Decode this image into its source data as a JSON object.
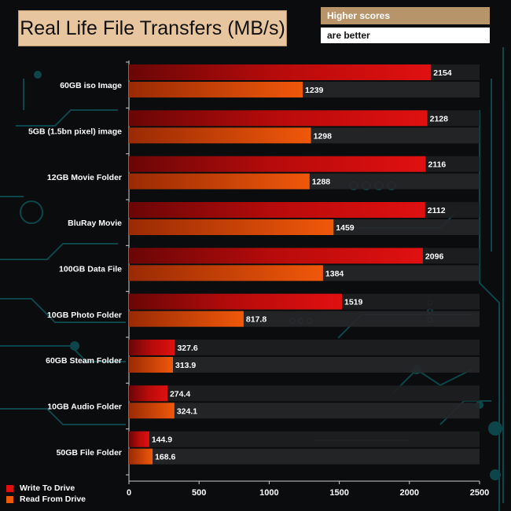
{
  "chart_data": {
    "type": "bar",
    "orientation": "horizontal",
    "title": "Real Life File Transfers (MB/s)",
    "notes": [
      "Higher scores",
      "are better"
    ],
    "categories": [
      "60GB iso Image",
      "5GB (1.5bn pixel) image",
      "12GB Movie Folder",
      "BluRay Movie",
      "100GB Data File",
      "10GB Photo Folder",
      "60GB Steam Folder",
      "10GB Audio Folder",
      "50GB File Folder"
    ],
    "series": [
      {
        "name": "Write To  Drive",
        "values": [
          2154,
          2128,
          2116,
          2112,
          2096,
          1519,
          327.6,
          274.4,
          144.9
        ],
        "labels": [
          "2154",
          "2128",
          "2116",
          "2112",
          "2096",
          "1519",
          "327.6",
          "274.4",
          "144.9"
        ],
        "color": "#e01010"
      },
      {
        "name": "Read From  Drive",
        "values": [
          1239,
          1298,
          1288,
          1459,
          1384,
          817.8,
          313.9,
          324.1,
          168.6
        ],
        "labels": [
          "1239",
          "1298",
          "1288",
          "1459",
          "1384",
          "817.8",
          "313.9",
          "324.1",
          "168.6"
        ],
        "color": "#f0580a"
      }
    ],
    "xlim": [
      0,
      2500
    ],
    "ticks": [
      "0",
      "500",
      "1000",
      "1500",
      "2000",
      "2500"
    ],
    "legend": "bottom-left"
  }
}
